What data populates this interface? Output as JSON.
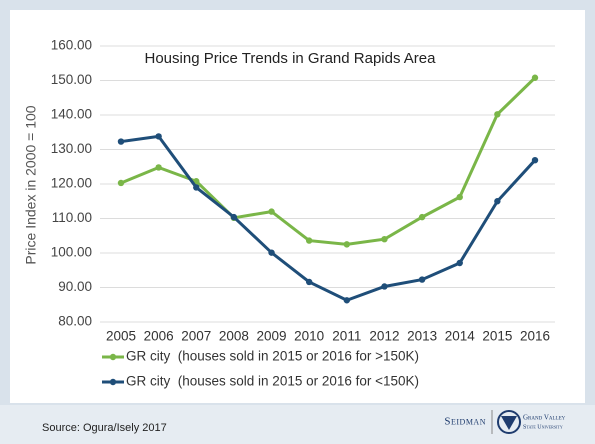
{
  "chart_data": {
    "type": "line",
    "title": "Housing Price Trends in Grand Rapids Area",
    "y_label": "Price Index in 2000 = 100",
    "categories": [
      "2005",
      "2006",
      "2007",
      "2008",
      "2009",
      "2010",
      "2011",
      "2012",
      "2013",
      "2014",
      "2015",
      "2016"
    ],
    "series": [
      {
        "name": "GR city  (houses sold in 2015 or 2016 for >150K)",
        "color": "#7ab648",
        "values": [
          120.3,
          124.8,
          120.8,
          110.2,
          112.0,
          103.6,
          102.5,
          104.0,
          110.4,
          116.2,
          140.2,
          150.8
        ]
      },
      {
        "name": "GR city  (houses sold in 2015 or 2016 for <150K)",
        "color": "#1f4e79",
        "values": [
          132.3,
          133.8,
          119.0,
          110.4,
          100.1,
          91.6,
          86.3,
          90.3,
          92.3,
          97.1,
          115.0,
          126.9
        ]
      }
    ],
    "ylim": [
      80,
      160
    ],
    "yticks": [
      {
        "value": 80,
        "label": "80.00"
      },
      {
        "value": 90,
        "label": "90.00"
      },
      {
        "value": 100,
        "label": "100.00"
      },
      {
        "value": 110,
        "label": "110.00"
      },
      {
        "value": 120,
        "label": "120.00"
      },
      {
        "value": 130,
        "label": "130.00"
      },
      {
        "value": 140,
        "label": "140.00"
      },
      {
        "value": 150,
        "label": "150.00"
      },
      {
        "value": 160,
        "label": "160.00"
      }
    ],
    "grid": true
  },
  "source": "Source: Ogura/Isely 2017",
  "logo": {
    "left": "Seidman",
    "right_top": "Grand Valley",
    "right_bottom": "State University"
  }
}
